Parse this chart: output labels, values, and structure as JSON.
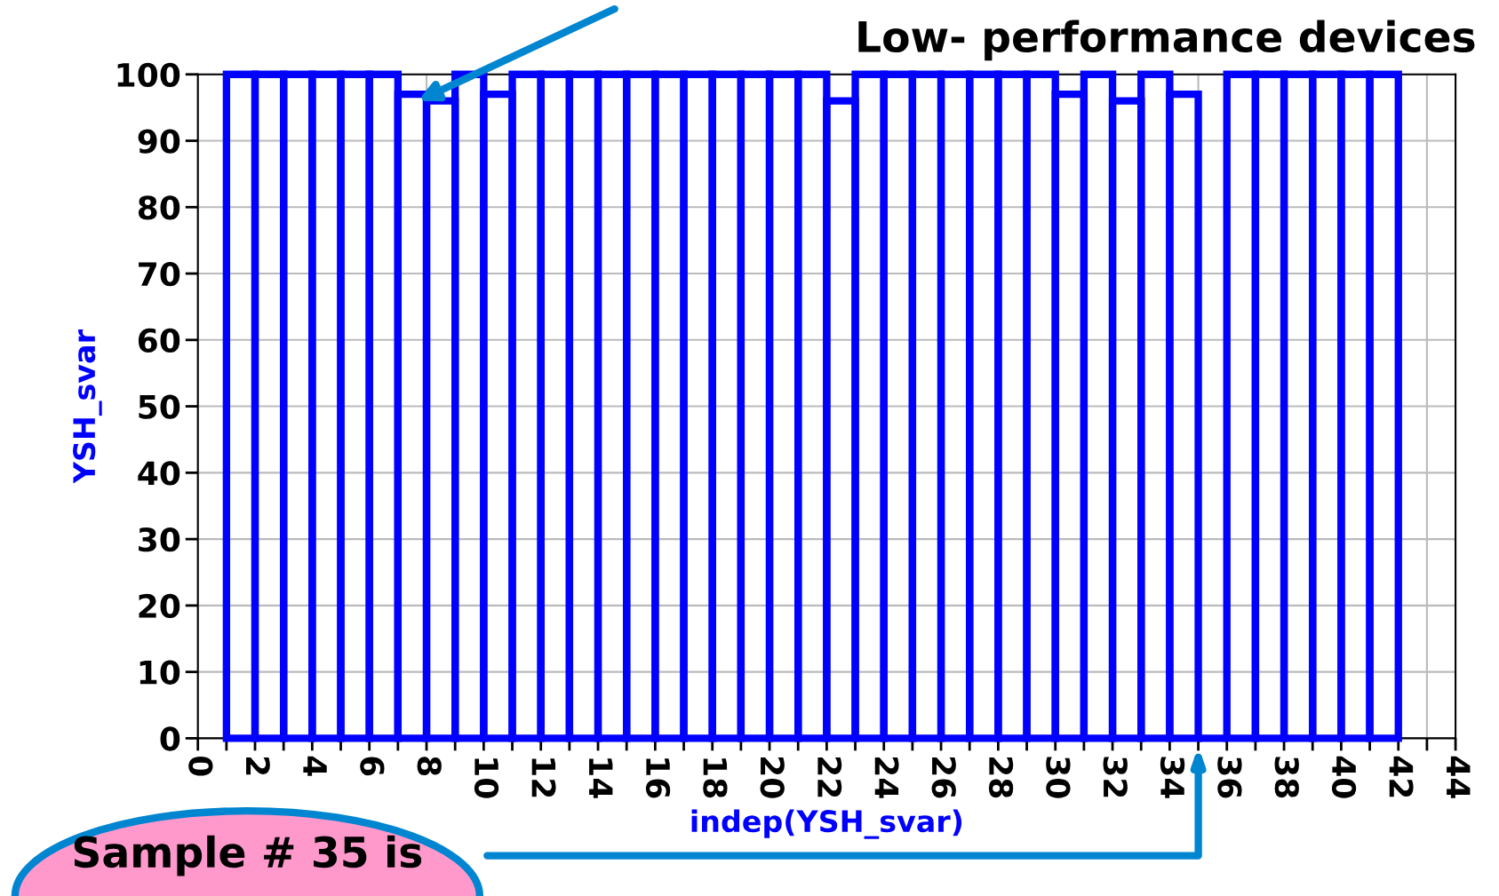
{
  "chart_data": {
    "type": "histogram",
    "bins": [
      1,
      2,
      3,
      4,
      5,
      6,
      7,
      8,
      9,
      10,
      11,
      12,
      13,
      14,
      15,
      16,
      17,
      18,
      19,
      20,
      21,
      22,
      23,
      24,
      25,
      26,
      27,
      28,
      29,
      30,
      31,
      32,
      33,
      34,
      35,
      36,
      37,
      38,
      39,
      40,
      41,
      42
    ],
    "values": [
      100,
      100,
      100,
      100,
      100,
      100,
      97,
      96,
      100,
      97,
      100,
      100,
      100,
      100,
      100,
      100,
      100,
      100,
      100,
      100,
      100,
      96,
      100,
      100,
      100,
      100,
      100,
      100,
      100,
      97,
      100,
      96,
      100,
      97,
      0,
      100,
      100,
      100,
      100,
      100,
      100
    ],
    "color": "#0000ff",
    "xlabel": "indep(YSH_svar)",
    "ylabel": "YSH_svar",
    "xlim": [
      0,
      44
    ],
    "xticks": [
      0,
      {
        "value": 1,
        "label": null
      },
      2,
      {
        "value": 3,
        "label": null
      },
      4,
      {
        "value": 5,
        "label": null
      },
      6,
      {
        "value": 7,
        "label": null
      },
      8,
      {
        "value": 9,
        "label": null
      },
      10,
      {
        "value": 11,
        "label": null
      },
      12,
      {
        "value": 13,
        "label": null
      },
      14,
      {
        "value": 15,
        "label": null
      },
      16,
      {
        "value": 17,
        "label": null
      },
      18,
      {
        "value": 19,
        "label": null
      },
      20,
      {
        "value": 21,
        "label": null
      },
      22,
      {
        "value": 23,
        "label": null
      },
      24,
      {
        "value": 25,
        "label": null
      },
      26,
      {
        "value": 27,
        "label": null
      },
      28,
      {
        "value": 29,
        "label": null
      },
      30,
      {
        "value": 31,
        "label": null
      },
      32,
      {
        "value": 33,
        "label": null
      },
      34,
      {
        "value": 35,
        "label": null
      },
      36,
      {
        "value": 37,
        "label": null
      },
      38,
      {
        "value": 39,
        "label": null
      },
      40,
      {
        "value": 41,
        "label": null
      },
      42,
      {
        "value": 43,
        "label": null
      },
      44
    ],
    "ylim": [
      0,
      100
    ],
    "yticks": [
      0,
      10,
      20,
      30,
      40,
      50,
      60,
      70,
      80,
      90,
      100
    ],
    "grid": true,
    "annotations": [
      "Low- performance devices",
      "Sample # 35 is"
    ]
  }
}
